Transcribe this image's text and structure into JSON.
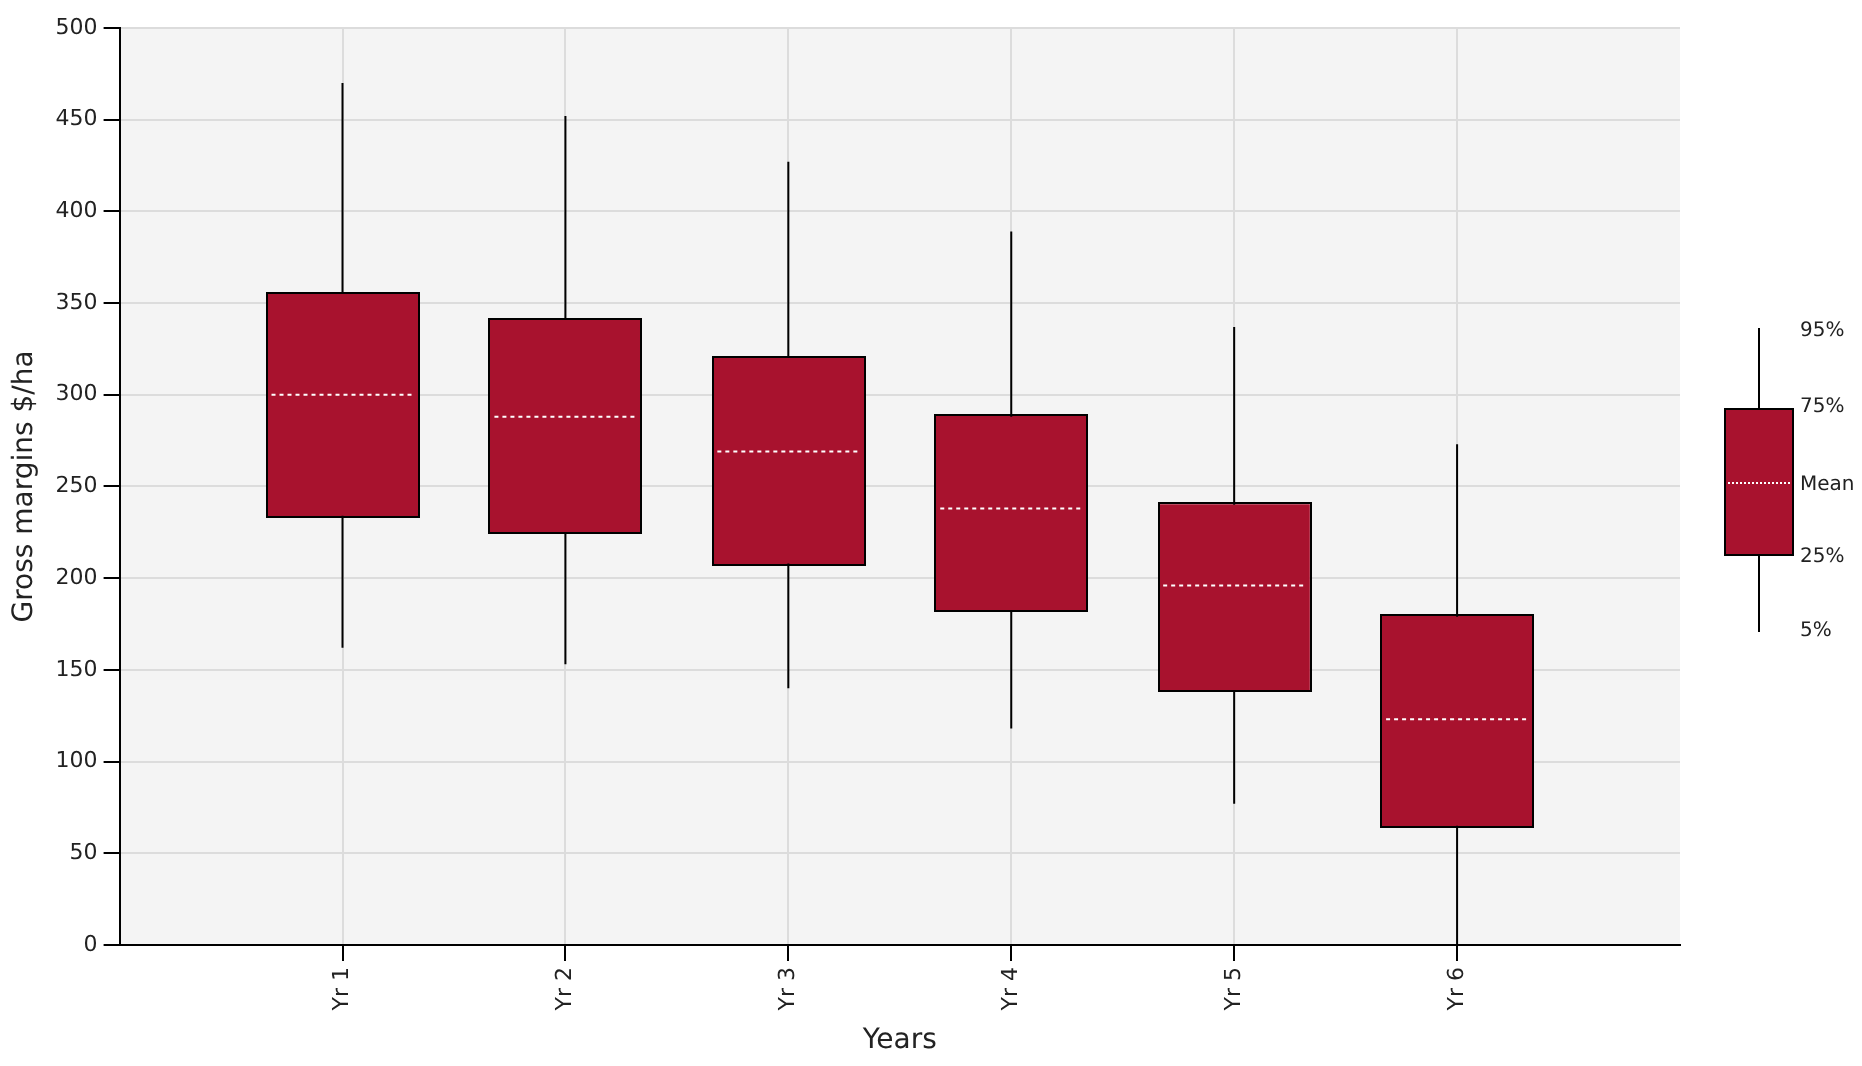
{
  "chart_data": {
    "type": "box",
    "xlabel": "Years",
    "ylabel": "Gross margins $/ha",
    "categories": [
      "Yr 1",
      "Yr 2",
      "Yr 3",
      "Yr 4",
      "Yr 5",
      "Yr 6"
    ],
    "boxes": [
      {
        "low": 162,
        "q1": 234,
        "mean": 300,
        "q3": 355,
        "high": 470
      },
      {
        "low": 153,
        "q1": 225,
        "mean": 288,
        "q3": 341,
        "high": 452
      },
      {
        "low": 140,
        "q1": 208,
        "mean": 269,
        "q3": 320,
        "high": 427
      },
      {
        "low": 118,
        "q1": 182,
        "mean": 238,
        "q3": 288,
        "high": 389
      },
      {
        "low": 77,
        "q1": 139,
        "mean": 196,
        "q3": 240,
        "high": 337
      },
      {
        "low": 0,
        "q1": 65,
        "mean": 123,
        "q3": 179,
        "high": 273
      }
    ],
    "color": "#a8122e",
    "ylim": [
      0,
      500
    ],
    "yticks": [
      0,
      50,
      100,
      150,
      200,
      250,
      300,
      350,
      400,
      450,
      500
    ],
    "grid": true,
    "annotations": [
      "95%",
      "75%",
      "Mean",
      "25%",
      "5%"
    ]
  }
}
